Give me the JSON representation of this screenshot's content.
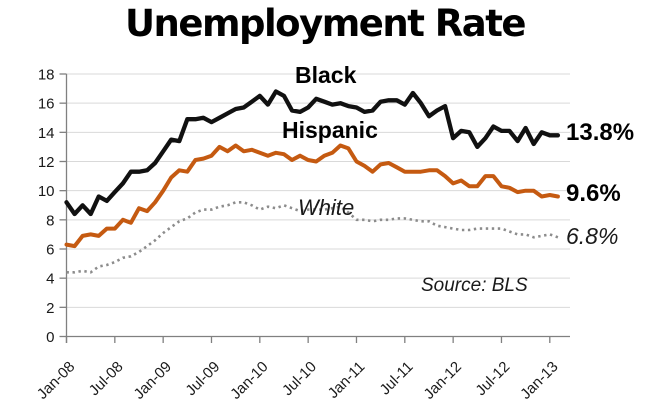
{
  "title": "Unemployment Rate",
  "colors": {
    "black_series": "#111111",
    "hispanic_series": "#C55A11",
    "white_series": "#8C8C8C",
    "gridline": "#D9D9D9",
    "axis": "#808080",
    "tick_text": "#1A1A1A"
  },
  "chart_data": {
    "type": "line",
    "title": "Unemployment Rate",
    "frequency": "monthly",
    "grid": "horizontal",
    "ylim": [
      0,
      18
    ],
    "y_tick_labels": [
      "0",
      "2",
      "4",
      "6",
      "8",
      "10",
      "12",
      "14",
      "16",
      "18"
    ],
    "x_tick_labels": [
      "Jan-08",
      "Jul-08",
      "Jan-09",
      "Jul-09",
      "Jan-10",
      "Jul-10",
      "Jan-11",
      "Jul-11",
      "Jan-12",
      "Jul-12",
      "Jan-13"
    ],
    "x_tick_every_n_months": 6,
    "months": [
      "Jan-08",
      "Feb-08",
      "Mar-08",
      "Apr-08",
      "May-08",
      "Jun-08",
      "Jul-08",
      "Aug-08",
      "Sep-08",
      "Oct-08",
      "Nov-08",
      "Dec-08",
      "Jan-09",
      "Feb-09",
      "Mar-09",
      "Apr-09",
      "May-09",
      "Jun-09",
      "Jul-09",
      "Aug-09",
      "Sep-09",
      "Oct-09",
      "Nov-09",
      "Dec-09",
      "Jan-10",
      "Feb-10",
      "Mar-10",
      "Apr-10",
      "May-10",
      "Jun-10",
      "Jul-10",
      "Aug-10",
      "Sep-10",
      "Oct-10",
      "Nov-10",
      "Dec-10",
      "Jan-11",
      "Feb-11",
      "Mar-11",
      "Apr-11",
      "May-11",
      "Jun-11",
      "Jul-11",
      "Aug-11",
      "Sep-11",
      "Oct-11",
      "Nov-11",
      "Dec-11",
      "Jan-12",
      "Feb-12",
      "Mar-12",
      "Apr-12",
      "May-12",
      "Jun-12",
      "Jul-12",
      "Aug-12",
      "Sep-12",
      "Oct-12",
      "Nov-12",
      "Dec-12",
      "Jan-13",
      "Feb-13"
    ],
    "series": [
      {
        "name": "Black",
        "color": "#111111",
        "style": "solid",
        "end_label": "13.8%",
        "values": [
          9.2,
          8.4,
          9.0,
          8.4,
          9.6,
          9.3,
          9.9,
          10.5,
          11.3,
          11.3,
          11.4,
          11.9,
          12.7,
          13.5,
          13.4,
          14.9,
          14.9,
          15.0,
          14.7,
          15.0,
          15.3,
          15.6,
          15.7,
          16.1,
          16.5,
          15.9,
          16.8,
          16.5,
          15.5,
          15.4,
          15.7,
          16.3,
          16.1,
          15.9,
          16.0,
          15.8,
          15.7,
          15.4,
          15.5,
          16.1,
          16.2,
          16.2,
          15.9,
          16.7,
          16.0,
          15.1,
          15.5,
          15.8,
          13.6,
          14.1,
          14.0,
          13.0,
          13.6,
          14.4,
          14.1,
          14.1,
          13.4,
          14.3,
          13.2,
          14.0,
          13.8,
          13.8
        ]
      },
      {
        "name": "Hispanic",
        "color": "#C55A11",
        "style": "solid",
        "end_label": "9.6%",
        "values": [
          6.3,
          6.2,
          6.9,
          7.0,
          6.9,
          7.4,
          7.4,
          8.0,
          7.8,
          8.8,
          8.6,
          9.2,
          10.0,
          10.9,
          11.4,
          11.3,
          12.1,
          12.2,
          12.4,
          13.0,
          12.7,
          13.1,
          12.7,
          12.8,
          12.6,
          12.4,
          12.6,
          12.5,
          12.1,
          12.4,
          12.1,
          12.0,
          12.4,
          12.6,
          13.1,
          12.9,
          12.0,
          11.7,
          11.3,
          11.8,
          11.9,
          11.6,
          11.3,
          11.3,
          11.3,
          11.4,
          11.4,
          11.0,
          10.5,
          10.7,
          10.3,
          10.3,
          11.0,
          11.0,
          10.3,
          10.2,
          9.9,
          10.0,
          10.0,
          9.6,
          9.7,
          9.6
        ]
      },
      {
        "name": "White",
        "color": "#8C8C8C",
        "style": "dotted",
        "end_label": "6.8%",
        "values": [
          4.4,
          4.4,
          4.5,
          4.4,
          4.8,
          4.9,
          5.1,
          5.4,
          5.5,
          5.8,
          6.2,
          6.6,
          7.1,
          7.5,
          7.9,
          8.1,
          8.5,
          8.7,
          8.7,
          8.9,
          9.0,
          9.2,
          9.2,
          9.0,
          8.7,
          8.9,
          8.8,
          9.0,
          8.8,
          8.6,
          8.7,
          8.7,
          8.7,
          8.8,
          8.9,
          8.5,
          8.0,
          8.0,
          7.9,
          8.0,
          8.0,
          8.1,
          8.1,
          8.0,
          7.9,
          7.9,
          7.6,
          7.5,
          7.4,
          7.3,
          7.3,
          7.4,
          7.4,
          7.4,
          7.4,
          7.2,
          7.0,
          7.0,
          6.8,
          6.9,
          7.0,
          6.8
        ]
      }
    ],
    "annotations": {
      "source": "Source: BLS"
    }
  }
}
